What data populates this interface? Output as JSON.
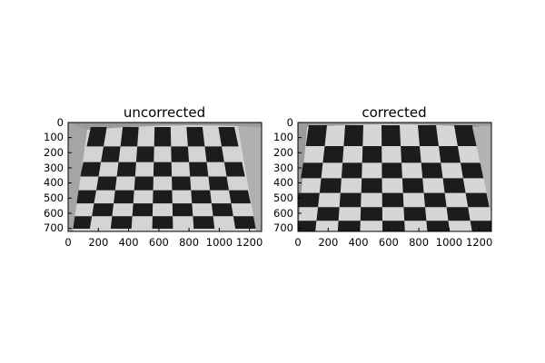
{
  "figure": {
    "background": "#ffffff",
    "panels": [
      {
        "id": "uncorrected",
        "title": "uncorrected",
        "image_subject": "grayscale photo of checkerboard calibration pattern with lens distortion",
        "x_ticks": [
          "0",
          "200",
          "400",
          "600",
          "800",
          "1000",
          "1200"
        ],
        "y_ticks": [
          "0",
          "100",
          "200",
          "300",
          "400",
          "500",
          "600",
          "700"
        ],
        "xlim": [
          0,
          1280
        ],
        "ylim": [
          720,
          0
        ]
      },
      {
        "id": "corrected",
        "title": "corrected",
        "image_subject": "grayscale photo of checkerboard calibration pattern after distortion correction",
        "x_ticks": [
          "0",
          "200",
          "400",
          "600",
          "800",
          "1000",
          "1200"
        ],
        "y_ticks": [
          "0",
          "100",
          "200",
          "300",
          "400",
          "500",
          "600",
          "700"
        ],
        "xlim": [
          0,
          1280
        ],
        "ylim": [
          720,
          0
        ]
      }
    ]
  }
}
